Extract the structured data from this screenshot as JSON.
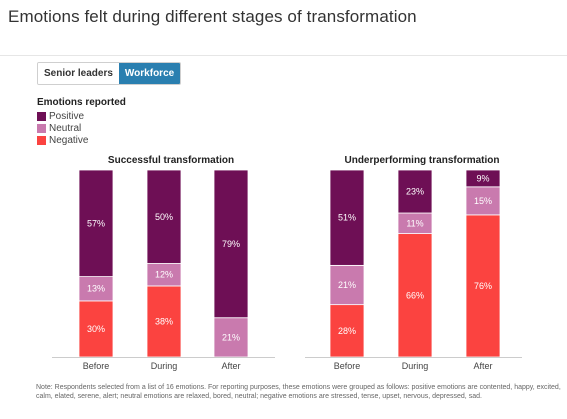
{
  "page": {
    "title": "Emotions felt during different stages of transformation",
    "note": "Note: Respondents selected from a list of 16 emotions. For reporting purposes, these emotions were grouped as follows: positive emotions are contented, happy, excited, calm, elated, serene, alert; neutral emotions are relaxed, bored, neutral; negative emotions are stressed, tense, upset, nervous, depressed, sad."
  },
  "toggle": {
    "options": [
      "Senior leaders",
      "Workforce"
    ],
    "selected": "Workforce"
  },
  "legend": {
    "title": "Emotions reported",
    "items": [
      {
        "label": "Positive",
        "color": "#6e0f55"
      },
      {
        "label": "Neutral",
        "color": "#c97aae"
      },
      {
        "label": "Negative",
        "color": "#fb4340"
      }
    ]
  },
  "chart_data": [
    {
      "type": "bar",
      "stacked": true,
      "title": "Successful transformation",
      "categories": [
        "Before",
        "During",
        "After"
      ],
      "series": [
        {
          "name": "Negative",
          "color": "#fb4340",
          "values": [
            30,
            38,
            0
          ]
        },
        {
          "name": "Neutral",
          "color": "#c97aae",
          "values": [
            13,
            12,
            21
          ]
        },
        {
          "name": "Positive",
          "color": "#6e0f55",
          "values": [
            57,
            50,
            79
          ]
        }
      ],
      "ylim": [
        0,
        100
      ]
    },
    {
      "type": "bar",
      "stacked": true,
      "title": "Underperforming transformation",
      "categories": [
        "Before",
        "During",
        "After"
      ],
      "series": [
        {
          "name": "Negative",
          "color": "#fb4340",
          "values": [
            28,
            66,
            76
          ]
        },
        {
          "name": "Neutral",
          "color": "#c97aae",
          "values": [
            21,
            11,
            15
          ]
        },
        {
          "name": "Positive",
          "color": "#6e0f55",
          "values": [
            51,
            23,
            9
          ]
        }
      ],
      "ylim": [
        0,
        100
      ]
    }
  ]
}
